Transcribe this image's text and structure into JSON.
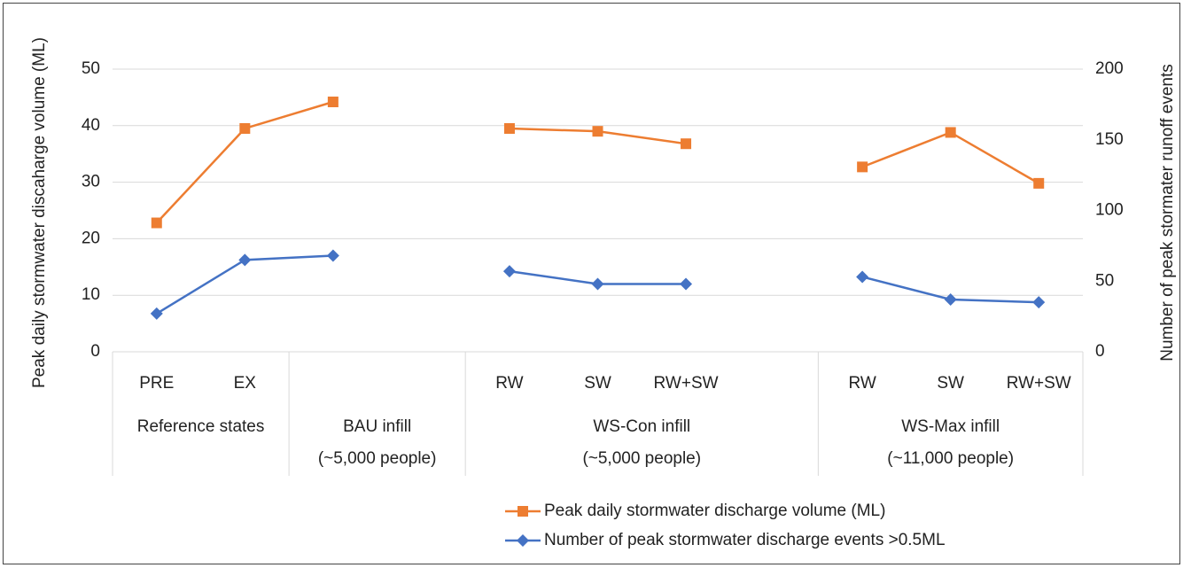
{
  "chart_data": {
    "type": "line",
    "y_label": "Peak daily stormwater discaharge volume (ML)",
    "y2_label": "Number of peak stormater runoff events",
    "groups": [
      {
        "label": [
          "Reference states"
        ],
        "categories": [
          "PRE",
          "EX"
        ]
      },
      {
        "label": [
          "BAU infill",
          "(~5,000 people)"
        ],
        "categories": [
          null,
          null
        ]
      },
      {
        "label": [
          "WS-Con infill",
          "(~5,000 people)"
        ],
        "categories": [
          "RW",
          "SW",
          "RW+SW",
          null
        ]
      },
      {
        "label": [
          "WS-Max infill",
          "(~11,000 people)"
        ],
        "categories": [
          "RW",
          "SW",
          "RW+SW"
        ]
      }
    ],
    "series": [
      {
        "name": "Peak daily stormwater discharge volume (ML)",
        "color": "#ed7d31",
        "marker": "square",
        "values": [
          22.8,
          39.5,
          44.2,
          null,
          39.5,
          39.0,
          36.8,
          null,
          32.7,
          38.8,
          29.8
        ]
      },
      {
        "name": "Number of peak stormwater discharge events >0.5ML",
        "color": "#4472c4",
        "marker": "diamond",
        "axis": "y2",
        "values": [
          27,
          65,
          68,
          null,
          57,
          48,
          48,
          null,
          53,
          37,
          35
        ]
      }
    ],
    "ylim": [
      0,
      50
    ],
    "yticks": [
      0,
      10,
      20,
      30,
      40,
      50
    ],
    "y2lim": [
      0,
      200
    ],
    "y2ticks": [
      0,
      50,
      100,
      150,
      200
    ],
    "grid": true,
    "legend": "bottom"
  }
}
